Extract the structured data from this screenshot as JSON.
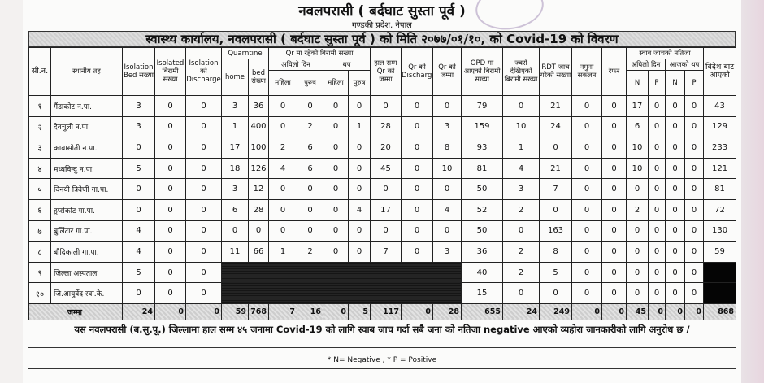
{
  "header": {
    "title": "नवलपरासी ( बर्दघाट सुस्ता पूर्व )",
    "subtitle": "गण्डकी प्रदेश, नेपाल",
    "banner": "स्वास्थ्य कार्यालय, नवलपरासी ( बर्दघाट सुस्ता पूर्व ) को मिति २०७७/०१/१०, को Covid-19 को विवरण"
  },
  "columns": {
    "sn": "सी.न.",
    "local": "स्थानीय तह",
    "iso_bed": "Isolation Bed संख्या",
    "isolated": "Isolated बिरामी संख्या",
    "iso_discharge": "Isolation को Discharge",
    "quarantine": "Quarntine",
    "home": "home",
    "bed": "bed संख्या",
    "qr_patients": "Qr मा रहेको बिरामी संख्या",
    "prev_day": "अघिलो दिन",
    "added": "थप",
    "female": "महिला",
    "male": "पुरुष",
    "qr_total_todate": "हाल सम्म Qr को जम्मा",
    "qr_discharge": "Qr को Discharge",
    "qr_total": "Qr को जम्मा",
    "opd": "OPD मा आएको बिरामी संख्या",
    "fever": "ज्वरो देखिएको बिरामी संख्या",
    "rdt": "RDT जाच गरेको संख्या",
    "sample": "नमुना संकलन",
    "refer": "रेफर",
    "swab": "स्वाब जाचको नतिजा",
    "swab_prev": "अघिलो दिन",
    "swab_today": "आजको थप",
    "n": "N",
    "p": "P",
    "abroad": "विदेश बाट आएको"
  },
  "rows": [
    {
      "sn": "१",
      "name": "गैंडाकोट न.पा.",
      "v": [
        3,
        0,
        0,
        3,
        36,
        0,
        0,
        0,
        0,
        0,
        0,
        0,
        79,
        0,
        21,
        0,
        0,
        17,
        0,
        0,
        0,
        43
      ]
    },
    {
      "sn": "२",
      "name": "देवचुली न.पा.",
      "v": [
        3,
        0,
        0,
        1,
        400,
        0,
        2,
        0,
        1,
        28,
        0,
        3,
        159,
        10,
        24,
        0,
        0,
        6,
        0,
        0,
        0,
        129
      ]
    },
    {
      "sn": "३",
      "name": "कावासोती न.पा.",
      "v": [
        0,
        0,
        0,
        17,
        100,
        2,
        6,
        0,
        0,
        20,
        0,
        8,
        93,
        1,
        0,
        0,
        0,
        10,
        0,
        0,
        0,
        233
      ]
    },
    {
      "sn": "४",
      "name": "मध्यविन्दु न.पा.",
      "v": [
        5,
        0,
        0,
        18,
        126,
        4,
        6,
        0,
        0,
        45,
        0,
        10,
        81,
        4,
        21,
        0,
        0,
        10,
        0,
        0,
        0,
        121
      ]
    },
    {
      "sn": "५",
      "name": "विनयी त्रिवेणी गा.पा.",
      "v": [
        0,
        0,
        0,
        3,
        12,
        0,
        0,
        0,
        0,
        0,
        0,
        0,
        50,
        3,
        7,
        0,
        0,
        0,
        0,
        0,
        0,
        81
      ]
    },
    {
      "sn": "६",
      "name": "हुप्सेकोट गा.पा.",
      "v": [
        0,
        0,
        0,
        6,
        28,
        0,
        0,
        0,
        4,
        17,
        0,
        4,
        52,
        2,
        0,
        0,
        0,
        2,
        0,
        0,
        0,
        72
      ]
    },
    {
      "sn": "७",
      "name": "बुलिंटार  गा.पा.",
      "v": [
        4,
        0,
        0,
        0,
        0,
        0,
        0,
        0,
        0,
        0,
        0,
        0,
        50,
        0,
        163,
        0,
        0,
        0,
        0,
        0,
        0,
        130
      ]
    },
    {
      "sn": "८",
      "name": "बौदिकाली गा.पा.",
      "v": [
        4,
        0,
        0,
        11,
        66,
        1,
        2,
        0,
        0,
        7,
        0,
        3,
        36,
        2,
        8,
        0,
        0,
        0,
        0,
        0,
        0,
        59
      ]
    },
    {
      "sn": "९",
      "name": "जिल्ला अस्पताल",
      "v": [
        5,
        0,
        0,
        null,
        null,
        null,
        null,
        null,
        null,
        null,
        null,
        null,
        40,
        2,
        5,
        0,
        0,
        0,
        0,
        0,
        0,
        null
      ]
    },
    {
      "sn": "१०",
      "name": "जि.आयुर्वेद स्वा.के.",
      "v": [
        0,
        0,
        0,
        null,
        null,
        null,
        null,
        null,
        null,
        null,
        null,
        null,
        15,
        0,
        0,
        0,
        0,
        0,
        0,
        0,
        0,
        null
      ]
    }
  ],
  "total": {
    "label": "जम्मा",
    "v": [
      24,
      0,
      0,
      59,
      768,
      7,
      16,
      0,
      5,
      117,
      0,
      28,
      655,
      24,
      249,
      0,
      0,
      45,
      0,
      0,
      0,
      868
    ]
  },
  "statement": "यस  नवलपरासी (ब.सु.पू.)  जिल्लामा हाल सम्म ४५ जनामा Covid-19 को  लागि स्वाब जाच गर्दा सबै जना को नतिजा negative आएको व्यहोरा जानकारीको लागि अनुरोध छ  /",
  "note": "* N= Negative   ,   * P = Positive"
}
